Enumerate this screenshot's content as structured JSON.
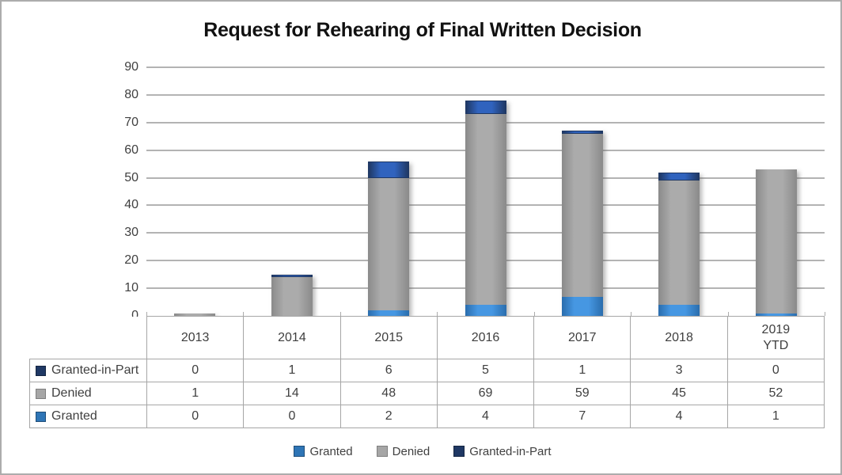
{
  "title": "Request for Rehearing of Final Written Decision",
  "chart_data": {
    "type": "bar",
    "stacked": true,
    "title": "Request for Rehearing of Final Written Decision",
    "categories": [
      "2013",
      "2014",
      "2015",
      "2016",
      "2017",
      "2018",
      "2019\nYTD"
    ],
    "series": [
      {
        "name": "Granted",
        "values": [
          0,
          0,
          2,
          4,
          7,
          4,
          1
        ],
        "color_mid": "#4697E2",
        "color_edge": "#2A6DAD",
        "swatch": "#2E75B6",
        "swatch_border": "#1F4E79"
      },
      {
        "name": "Denied",
        "values": [
          1,
          14,
          48,
          69,
          59,
          45,
          52
        ],
        "color_mid": "#ABABAB",
        "color_edge": "#8A8A8A",
        "swatch": "#A6A6A6",
        "swatch_border": "#7F7F7F"
      },
      {
        "name": "Granted-in-Part",
        "values": [
          0,
          1,
          6,
          5,
          1,
          3,
          0
        ],
        "color_mid": "#3063BE",
        "color_edge": "#1F3864",
        "swatch": "#1F3864",
        "swatch_border": "#142541"
      }
    ],
    "ylim": [
      0,
      90
    ],
    "ytick_step": 10,
    "grid": true,
    "legend_position": "bottom"
  },
  "y_axis": {
    "ticks": [
      "90",
      "80",
      "70",
      "60",
      "50",
      "40",
      "30",
      "20",
      "10",
      "0"
    ]
  },
  "table": {
    "col_headers": [
      "2013",
      "2014",
      "2015",
      "2016",
      "2017",
      "2018",
      "2019\nYTD"
    ],
    "rows": [
      {
        "label": "Granted-in-Part",
        "series_index": 2,
        "values": [
          "0",
          "1",
          "6",
          "5",
          "1",
          "3",
          "0"
        ]
      },
      {
        "label": "Denied",
        "series_index": 1,
        "values": [
          "1",
          "14",
          "48",
          "69",
          "59",
          "45",
          "52"
        ]
      },
      {
        "label": "Granted",
        "series_index": 0,
        "values": [
          "0",
          "0",
          "2",
          "4",
          "7",
          "4",
          "1"
        ]
      }
    ]
  },
  "legend": {
    "items": [
      {
        "label": "Granted",
        "series_index": 0
      },
      {
        "label": "Denied",
        "series_index": 1
      },
      {
        "label": "Granted-in-Part",
        "series_index": 2
      }
    ]
  }
}
